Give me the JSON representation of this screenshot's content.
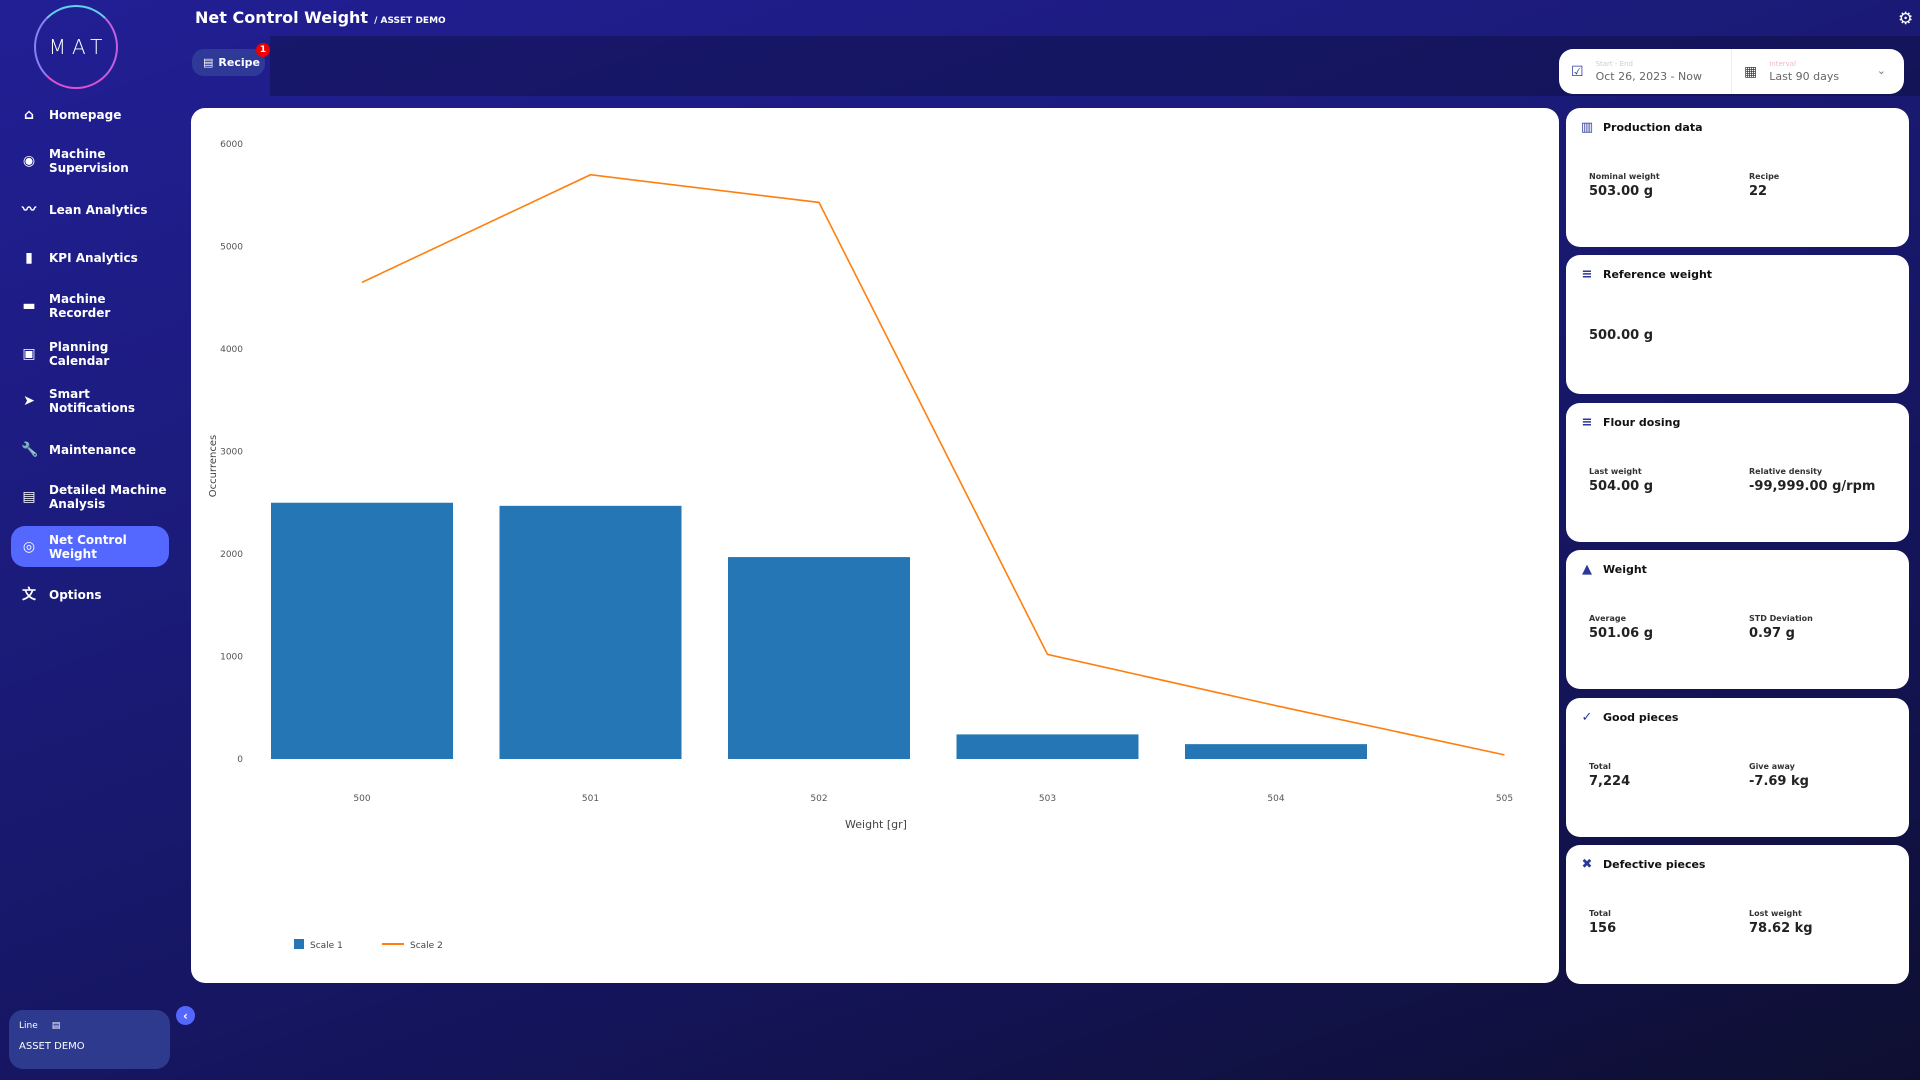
{
  "logo": "MAT",
  "sidebar": {
    "items": [
      {
        "label": "Homepage",
        "icon": "home-icon",
        "glyph": "⌂"
      },
      {
        "label": "Machine Supervision",
        "icon": "eye-icon",
        "glyph": "◉"
      },
      {
        "label": "Lean Analytics",
        "icon": "trend-icon",
        "glyph": "〰"
      },
      {
        "label": "KPI Analytics",
        "icon": "bar-chart-icon",
        "glyph": "▮"
      },
      {
        "label": "Machine Recorder",
        "icon": "recorder-icon",
        "glyph": "▬"
      },
      {
        "label": "Planning Calendar",
        "icon": "calendar-icon",
        "glyph": "▣"
      },
      {
        "label": "Smart Notifications",
        "icon": "send-icon",
        "glyph": "➤"
      },
      {
        "label": "Maintenance",
        "icon": "wrench-icon",
        "glyph": "🔧"
      },
      {
        "label": "Detailed Machine Analysis",
        "icon": "event-note-icon",
        "glyph": "▤"
      },
      {
        "label": "Net Control Weight",
        "icon": "radar-icon",
        "glyph": "◎",
        "active": true
      },
      {
        "label": "Options",
        "icon": "translate-icon",
        "glyph": "文"
      }
    ],
    "line_label": "Line",
    "line_value": "ASSET DEMO"
  },
  "header": {
    "title": "Net Control Weight",
    "subtitle": "/ ASSET DEMO",
    "recipe_label": "Recipe",
    "recipe_badge": "1"
  },
  "datepicker": {
    "range_label": "Start - End",
    "range_value": "Oct 26, 2023 - Now",
    "interval_label": "Interval",
    "interval_value": "Last 90 days"
  },
  "cards": [
    {
      "title": "Production data",
      "icon": "bar-chart-icon",
      "glyph": "▥",
      "fields": [
        {
          "k": "Nominal weight",
          "v": "503.00 g"
        },
        {
          "k": "Recipe",
          "v": "22"
        }
      ]
    },
    {
      "title": "Reference weight",
      "icon": "menu-icon",
      "glyph": "≡",
      "fields": [
        {
          "k": "",
          "v": "500.00 g"
        }
      ]
    },
    {
      "title": "Flour dosing",
      "icon": "menu-icon",
      "glyph": "≡",
      "fields": [
        {
          "k": "Last weight",
          "v": "504.00 g"
        },
        {
          "k": "Relative density",
          "v": "-99,999.00 g/rpm"
        }
      ]
    },
    {
      "title": "Weight",
      "icon": "weight-icon",
      "glyph": "▲",
      "fields": [
        {
          "k": "Average",
          "v": "501.06 g"
        },
        {
          "k": "STD Deviation",
          "v": "0.97 g"
        }
      ]
    },
    {
      "title": "Good pieces",
      "icon": "check-icon",
      "glyph": "✓",
      "fields": [
        {
          "k": "Total",
          "v": "7,224"
        },
        {
          "k": "Give away",
          "v": "-7.69 kg"
        }
      ]
    },
    {
      "title": "Defective pieces",
      "icon": "cancel-icon",
      "glyph": "✖",
      "fields": [
        {
          "k": "Total",
          "v": "156"
        },
        {
          "k": "Lost weight",
          "v": "78.62 kg"
        }
      ]
    }
  ],
  "chart_data": {
    "type": "bar",
    "categories": [
      "500",
      "501",
      "502",
      "503",
      "504",
      "505"
    ],
    "series": [
      {
        "name": "Scale 1",
        "type": "bar",
        "color": "#2477b4",
        "values": [
          2500,
          2470,
          1970,
          240,
          145,
          null
        ]
      },
      {
        "name": "Scale 2",
        "type": "line",
        "color": "#ff7f0e",
        "values": [
          4650,
          5700,
          5430,
          1020,
          520,
          40
        ]
      }
    ],
    "xlabel": "Weight [gr]",
    "ylabel": "Occurrences",
    "yticks": [
      "0",
      "1000",
      "2000",
      "3000",
      "4000",
      "5000",
      "6000"
    ],
    "ylim": [
      0,
      6000
    ],
    "grid": false,
    "legend": "bottom-left"
  }
}
